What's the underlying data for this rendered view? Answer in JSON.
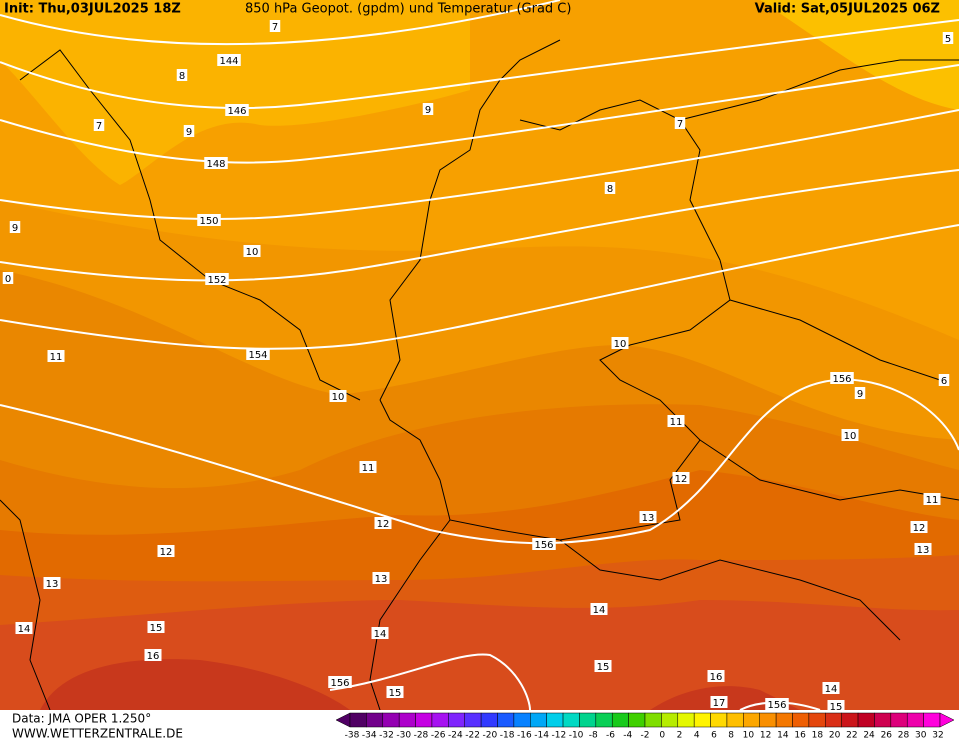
{
  "header": {
    "init": "Init: Thu,03JUL2025 18Z",
    "title": "850 hPa Geopot. (gpdm) und Temperatur (Grad C)",
    "valid": "Valid: Sat,05JUL2025 06Z"
  },
  "geopotential_labels": [
    "144",
    "146",
    "148",
    "150",
    "152",
    "154",
    "156",
    "156",
    "156",
    "156"
  ],
  "temperature_labels": [
    "7",
    "8",
    "7",
    "9",
    "9",
    "7",
    "8",
    "9",
    "10",
    "0",
    "11",
    "10",
    "10",
    "9",
    "6",
    "10",
    "11",
    "11",
    "12",
    "11",
    "12",
    "13",
    "12",
    "12",
    "13",
    "13",
    "13",
    "14",
    "14",
    "15",
    "14",
    "16",
    "15",
    "15",
    "16",
    "17",
    "14",
    "15",
    "5"
  ],
  "footer": {
    "data": "Data: JMA OPER 1.250°",
    "site": "WWW.WETTERZENTRALE.DE"
  },
  "colorbar_labels": [
    "-38",
    "-34",
    "-32",
    "-30",
    "-28",
    "-26",
    "-24",
    "-22",
    "-20",
    "-18",
    "-16",
    "-14",
    "-12",
    "-10",
    "-8",
    "-6",
    "-4",
    "-2",
    "0",
    "2",
    "4",
    "6",
    "8",
    "10",
    "12",
    "14",
    "16",
    "18",
    "20",
    "22",
    "24",
    "26",
    "28",
    "30",
    "32"
  ]
}
